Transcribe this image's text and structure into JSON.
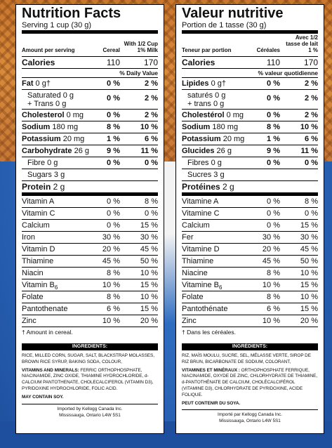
{
  "en": {
    "title": "Nutrition Facts",
    "serving": "Serving 1 cup (30 g)",
    "hdr_amount": "Amount per serving",
    "hdr_col1": "Cereal",
    "hdr_col2": "With 1/2 Cup 1% Milk",
    "calories": {
      "label": "Calories",
      "v1": "110",
      "v2": "170"
    },
    "dv_label": "% Daily Value",
    "nutrients": [
      {
        "label": "Fat",
        "amt": " 0 g†",
        "v1": "0 %",
        "v2": "2 %"
      },
      {
        "label": "Saturated 0 g",
        "label2": "+ Trans 0 g",
        "v1": "0 %",
        "v2": "2 %"
      },
      {
        "label": "Cholesterol",
        "amt": " 0 mg",
        "v1": "0 %",
        "v2": "2 %"
      },
      {
        "label": "Sodium",
        "amt": " 180 mg",
        "v1": "8 %",
        "v2": "10 %"
      },
      {
        "label": "Potassium",
        "amt": " 20 mg",
        "v1": "1 %",
        "v2": "6 %"
      },
      {
        "label": "Carbohydrate",
        "amt": " 26 g",
        "v1": "9 %",
        "v2": "11 %"
      },
      {
        "label": "Fibre 0 g",
        "v1": "0 %",
        "v2": "0 %"
      },
      {
        "label": "Sugars 3 g"
      },
      {
        "label": "Protein",
        "amt": " 2 g"
      }
    ],
    "vitamins": [
      {
        "label": "Vitamin A",
        "v1": "0 %",
        "v2": "8 %"
      },
      {
        "label": "Vitamin C",
        "v1": "0 %",
        "v2": "0 %"
      },
      {
        "label": "Calcium",
        "v1": "0 %",
        "v2": "15 %"
      },
      {
        "label": "Iron",
        "v1": "30 %",
        "v2": "30 %"
      },
      {
        "label": "Vitamin D",
        "v1": "20 %",
        "v2": "45 %"
      },
      {
        "label": "Thiamine",
        "v1": "45 %",
        "v2": "50 %"
      },
      {
        "label": "Niacin",
        "v1": "8 %",
        "v2": "10 %"
      },
      {
        "label": "Vitamin B",
        "sub": "6",
        "v1": "10 %",
        "v2": "15 %"
      },
      {
        "label": "Folate",
        "v1": "8 %",
        "v2": "10 %"
      },
      {
        "label": "Pantothenate",
        "v1": "6 %",
        "v2": "15 %"
      },
      {
        "label": "Zinc",
        "v1": "10 %",
        "v2": "20 %"
      }
    ],
    "footnote": "† Amount in cereal.",
    "ing_head": "INGREDIENTS:",
    "ing_text": "RICE, MILLED CORN, SUGAR, SALT, BLACKSTRAP MOLASSES, BROWN RICE SYRUP, BAKING SODA, COLOUR,",
    "vm_head": "VITAMINS AND MINERALS:",
    "vm_text": " FERRIC ORTHOPHOSPHATE, NIACINAMIDE, ZINC OXIDE, THIAMINE HYDROCHLORIDE, d-CALCIUM PANTOTHENATE, CHOLECALCIFEROL (VITAMIN D3), PYRIDOXINE HYDROCHLORIDE, FOLIC ACID.",
    "soy": "MAY CONTAIN SOY.",
    "imp1": "Imported by Kellogg Canada Inc.",
    "imp2": "Mississauga, Ontario  L4W 5S1"
  },
  "fr": {
    "title": "Valeur nutritive",
    "serving": "Portion de 1 tasse (30 g)",
    "hdr_amount": "Teneur par portion",
    "hdr_col1": "Céréales",
    "hdr_col2": "Avec 1/2 tasse de lait 1 %",
    "calories": {
      "label": "Calories",
      "v1": "110",
      "v2": "170"
    },
    "dv_label": "% valeur quotidienne",
    "nutrients": [
      {
        "label": "Lipides",
        "amt": " 0 g†",
        "v1": "0 %",
        "v2": "2 %"
      },
      {
        "label": "saturés 0 g",
        "label2": "+ trans 0 g",
        "v1": "0 %",
        "v2": "2 %"
      },
      {
        "label": "Cholestérol",
        "amt": " 0 mg",
        "v1": "0 %",
        "v2": "2 %"
      },
      {
        "label": "Sodium",
        "amt": " 180 mg",
        "v1": "8 %",
        "v2": "10 %"
      },
      {
        "label": "Potassium",
        "amt": " 20 mg",
        "v1": "1 %",
        "v2": "6 %"
      },
      {
        "label": "Glucides",
        "amt": " 26 g",
        "v1": "9 %",
        "v2": "11 %"
      },
      {
        "label": "Fibres 0 g",
        "v1": "0 %",
        "v2": "0 %"
      },
      {
        "label": "Sucres 3 g"
      },
      {
        "label": "Protéines",
        "amt": " 2 g"
      }
    ],
    "vitamins": [
      {
        "label": "Vitamine A",
        "v1": "0 %",
        "v2": "8 %"
      },
      {
        "label": "Vitamine C",
        "v1": "0 %",
        "v2": "0 %"
      },
      {
        "label": "Calcium",
        "v1": "0 %",
        "v2": "15 %"
      },
      {
        "label": "Fer",
        "v1": "30 %",
        "v2": "30 %"
      },
      {
        "label": "Vitamine D",
        "v1": "20 %",
        "v2": "45 %"
      },
      {
        "label": "Thiamine",
        "v1": "45 %",
        "v2": "50 %"
      },
      {
        "label": "Niacine",
        "v1": "8 %",
        "v2": "10 %"
      },
      {
        "label": "Vitamine B",
        "sub": "6",
        "v1": "10 %",
        "v2": "15 %"
      },
      {
        "label": "Folate",
        "v1": "8 %",
        "v2": "10 %"
      },
      {
        "label": "Pantothénate",
        "v1": "6 %",
        "v2": "15 %"
      },
      {
        "label": "Zinc",
        "v1": "10 %",
        "v2": "20 %"
      }
    ],
    "footnote": "† Dans les céréales.",
    "ing_head": "INGRÉDIENTS:",
    "ing_text": "RIZ, MAÏS MOULU, SUCRE, SEL, MÉLASSE VERTE, SIROP DE RIZ BRUN, BICARBONATE DE SODIUM, COLORANT,",
    "vm_head": "VITAMINES ET MINÉRAUX :",
    "vm_text": " ORTHOPHOSPHATE FERRIQUE, NIACINAMIDE, OXYDE DE ZINC, CHLORHYDRATE DE THIAMINE, d-PANTOTHÉNATE DE CALCIUM, CHOLÉCALCIFÉROL (VITAMINE D3), CHLORHYDRATE DE PYRIDOXINE, ACIDE FOLIQUE.",
    "soy": "PEUT CONTENIR DU SOYA.",
    "imp1": "Importé par Kellogg Canada Inc.",
    "imp2": "Mississauga, Ontario  L4W 5S1"
  }
}
